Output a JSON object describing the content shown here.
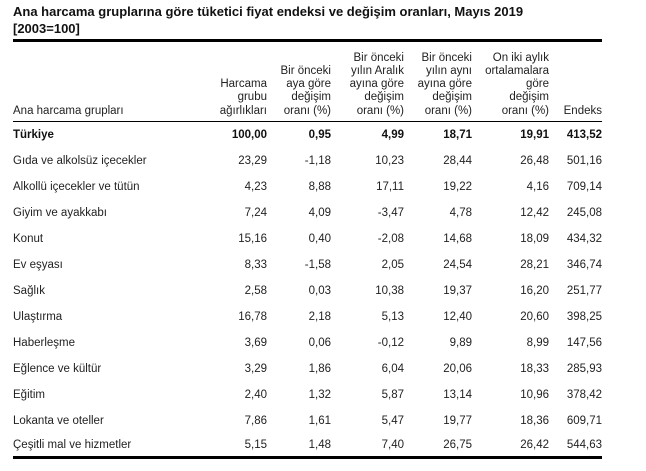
{
  "document": {
    "title": "Ana harcama gruplarına göre tüketici fiyat endeksi ve değişim oranları, Mayıs 2019",
    "subtitle": "[2003=100]"
  },
  "table": {
    "headers": [
      {
        "lines": [
          "Ana harcama grupları"
        ]
      },
      {
        "lines": [
          "Harcama",
          "grubu",
          "ağırlıkları"
        ]
      },
      {
        "lines": [
          "Bir önceki",
          "aya göre",
          "değişim",
          "oranı (%)"
        ]
      },
      {
        "lines": [
          "Bir önceki",
          "yılın Aralık",
          "ayına göre",
          "değişim",
          "oranı (%)"
        ]
      },
      {
        "lines": [
          "Bir önceki",
          "yılın aynı",
          "ayına göre",
          "değişim",
          "oranı (%)"
        ]
      },
      {
        "lines": [
          "On iki aylık",
          "ortalamalara",
          "göre",
          "değişim",
          "oranı (%)"
        ]
      },
      {
        "lines": [
          "Endeks"
        ]
      }
    ],
    "rows": [
      {
        "group": "Türkiye",
        "weight": "100,00",
        "mom": "0,95",
        "ytd": "4,99",
        "yoy": "18,71",
        "avg12": "19,91",
        "index": "413,52",
        "bold": true
      },
      {
        "group": "Gıda ve alkolsüz içecekler",
        "weight": "23,29",
        "mom": "-1,18",
        "ytd": "10,23",
        "yoy": "28,44",
        "avg12": "26,48",
        "index": "501,16"
      },
      {
        "group": "Alkollü içecekler ve tütün",
        "weight": "4,23",
        "mom": "8,88",
        "ytd": "17,11",
        "yoy": "19,22",
        "avg12": "4,16",
        "index": "709,14"
      },
      {
        "group": "Giyim ve ayakkabı",
        "weight": "7,24",
        "mom": "4,09",
        "ytd": "-3,47",
        "yoy": "4,78",
        "avg12": "12,42",
        "index": "245,08"
      },
      {
        "group": "Konut",
        "weight": "15,16",
        "mom": "0,40",
        "ytd": "-2,08",
        "yoy": "14,68",
        "avg12": "18,09",
        "index": "434,32"
      },
      {
        "group": "Ev eşyası",
        "weight": "8,33",
        "mom": "-1,58",
        "ytd": "2,05",
        "yoy": "24,54",
        "avg12": "28,21",
        "index": "346,74"
      },
      {
        "group": "Sağlık",
        "weight": "2,58",
        "mom": "0,03",
        "ytd": "10,38",
        "yoy": "19,37",
        "avg12": "16,20",
        "index": "251,77"
      },
      {
        "group": "Ulaştırma",
        "weight": "16,78",
        "mom": "2,18",
        "ytd": "5,13",
        "yoy": "12,40",
        "avg12": "20,60",
        "index": "398,25"
      },
      {
        "group": "Haberleşme",
        "weight": "3,69",
        "mom": "0,06",
        "ytd": "-0,12",
        "yoy": "9,89",
        "avg12": "8,99",
        "index": "147,56"
      },
      {
        "group": "Eğlence ve kültür",
        "weight": "3,29",
        "mom": "1,86",
        "ytd": "6,04",
        "yoy": "20,06",
        "avg12": "18,33",
        "index": "285,93"
      },
      {
        "group": "Eğitim",
        "weight": "2,40",
        "mom": "1,32",
        "ytd": "5,87",
        "yoy": "13,14",
        "avg12": "10,96",
        "index": "378,42"
      },
      {
        "group": "Lokanta ve oteller",
        "weight": "7,86",
        "mom": "1,61",
        "ytd": "5,47",
        "yoy": "19,77",
        "avg12": "18,36",
        "index": "609,71"
      },
      {
        "group": "Çeşitli mal ve hizmetler",
        "weight": "5,15",
        "mom": "1,48",
        "ytd": "7,40",
        "yoy": "26,75",
        "avg12": "26,42",
        "index": "544,63"
      }
    ]
  }
}
